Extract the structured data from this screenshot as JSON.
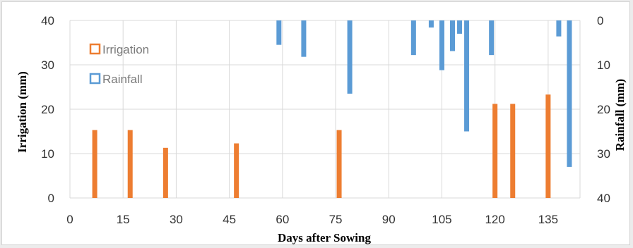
{
  "chart_data": {
    "type": "bar",
    "xlabel": "Days after Sowing",
    "ylabel": "Irrigation (mm)",
    "y2label": "Rainfall (mm)",
    "xlim": [
      0,
      144
    ],
    "xticks": [
      0,
      15,
      30,
      45,
      60,
      75,
      90,
      105,
      120,
      135
    ],
    "ylim": [
      0,
      40
    ],
    "yticks": [
      0,
      10,
      20,
      30,
      40
    ],
    "y2lim": [
      0,
      40
    ],
    "y2_inverted": true,
    "y2ticks": [
      0,
      10,
      20,
      30,
      40
    ],
    "grid": true,
    "legend_position": "top-left",
    "series": [
      {
        "name": "Irrigation",
        "axis": "left",
        "color": "#ED7D31",
        "x": [
          7,
          17,
          27,
          47,
          76,
          120,
          125,
          135
        ],
        "values": [
          15.3,
          15.3,
          11.3,
          12.3,
          15.3,
          21.2,
          21.2,
          23.3
        ]
      },
      {
        "name": "Rainfall",
        "axis": "right",
        "color": "#5B9BD5",
        "x": [
          59,
          66,
          79,
          97,
          102,
          105,
          108,
          110,
          112,
          119,
          138,
          141
        ],
        "values": [
          5.5,
          8.2,
          16.5,
          7.8,
          1.6,
          11.2,
          6.9,
          3.0,
          25.0,
          7.8,
          3.6,
          33.0
        ]
      }
    ]
  }
}
